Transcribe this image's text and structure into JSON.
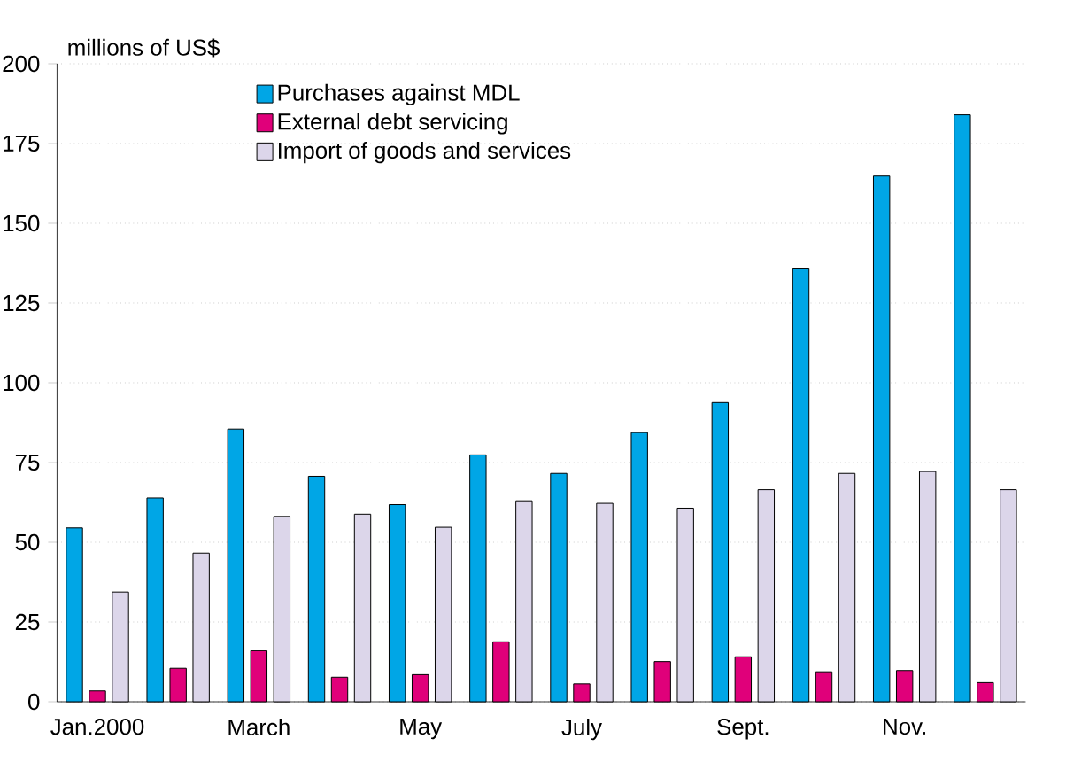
{
  "chart_data": {
    "type": "bar",
    "ylabel": "millions of US$",
    "categories": [
      "Jan.2000",
      null,
      "March",
      null,
      "May",
      null,
      "July",
      null,
      "Sept.",
      null,
      "Nov.",
      null
    ],
    "series": [
      {
        "name": "Purchases against MDL",
        "color": "#00a6e6",
        "values": [
          54.5,
          63.9,
          85.5,
          70.7,
          61.8,
          77.4,
          71.6,
          84.4,
          93.8,
          135.7,
          164.8,
          184
        ]
      },
      {
        "name": "External debt servicing",
        "color": "#e0007a",
        "values": [
          3.4,
          10.5,
          16,
          7.7,
          8.5,
          18.8,
          5.6,
          12.6,
          14.1,
          9.4,
          9.8,
          6
        ]
      },
      {
        "name": "Import of goods and services",
        "color": "#dcd6ea",
        "values": [
          34.4,
          46.6,
          58.1,
          58.8,
          54.7,
          63,
          62.2,
          60.7,
          66.5,
          71.6,
          72.2,
          66.5
        ]
      }
    ],
    "ylim": [
      0,
      200
    ],
    "yticks": [
      0,
      25,
      50,
      75,
      100,
      125,
      150,
      175,
      200
    ],
    "grid": "y",
    "legend": "top left"
  }
}
